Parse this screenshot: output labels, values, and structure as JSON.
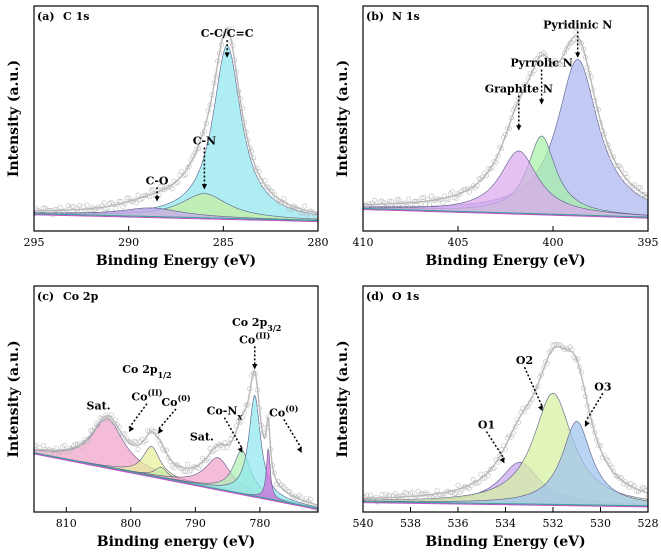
{
  "chart_data": [
    {
      "type": "line",
      "panel_label": "(a)",
      "title": "C 1s",
      "xlabel": "Binding Energy (eV)",
      "ylabel": "Intensity (a.u.)",
      "xlim": [
        295,
        280
      ],
      "xticks": [
        "295",
        "290",
        "285",
        "280"
      ],
      "baseline": {
        "start": 0.1,
        "end": 0.06
      },
      "peaks": [
        {
          "name": "C-C/C=C",
          "center": 284.8,
          "height": 1.0,
          "width": 0.9,
          "fill": "#8fe8ee"
        },
        {
          "name": "C-N",
          "center": 286.0,
          "height": 0.14,
          "width": 1.5,
          "fill": "#c6f0a0"
        },
        {
          "name": "C-O",
          "center": 288.8,
          "height": 0.05,
          "width": 2.0,
          "fill": "#c9a6ee"
        }
      ],
      "annotations": [
        {
          "text": "C-C/C=C",
          "x": 284.8,
          "peak": 1.0,
          "label_y": 1.12
        },
        {
          "text": "C-N",
          "x": 286.0,
          "peak": 0.24,
          "label_y": 0.5
        },
        {
          "text": "C-O",
          "x": 288.5,
          "peak": 0.17,
          "label_y": 0.27
        }
      ]
    },
    {
      "type": "line",
      "panel_label": "(b)",
      "title": "N 1s",
      "xlabel": "Binding Energy (eV)",
      "ylabel": "Intensity (a.u.)",
      "xlim": [
        410,
        395
      ],
      "xticks": [
        "410",
        "405",
        "400",
        "395"
      ],
      "baseline": {
        "start": 0.13,
        "end": 0.08
      },
      "peaks": [
        {
          "name": "Pyridinic N",
          "center": 398.7,
          "height": 0.9,
          "width": 1.3,
          "fill": "#aab5f0"
        },
        {
          "name": "Pyrrolic N",
          "center": 400.6,
          "height": 0.45,
          "width": 0.9,
          "fill": "#a8f0a8"
        },
        {
          "name": "Graphite N",
          "center": 401.8,
          "height": 0.36,
          "width": 1.2,
          "fill": "#dba8ee"
        }
      ],
      "annotations": [
        {
          "text": "Pyridinic N",
          "x": 398.7,
          "peak": 1.0,
          "label_y": 1.17
        },
        {
          "text": "Pyrrolic N",
          "x": 400.6,
          "peak": 0.73,
          "label_y": 0.95
        },
        {
          "text": "Graphite N",
          "x": 401.8,
          "peak": 0.58,
          "label_y": 0.8
        }
      ]
    },
    {
      "type": "line",
      "panel_label": "(c)",
      "title": "Co 2p",
      "xlabel": "Binding energy (eV)",
      "ylabel": "Intensity (a.u.)",
      "xlim": [
        815,
        771
      ],
      "xticks": [
        "810",
        "800",
        "790",
        "780"
      ],
      "baseline": {
        "start": 0.34,
        "end": 0.02
      },
      "peaks": [
        {
          "name": "Sat.",
          "center": 803.6,
          "height": 0.28,
          "width": 3.0,
          "fill": "#f0a2c8"
        },
        {
          "name": "Co(II)",
          "center": 796.8,
          "height": 0.17,
          "width": 1.6,
          "fill": "#e8ef9a"
        },
        {
          "name": "Co(0)",
          "center": 795.3,
          "height": 0.06,
          "width": 1.2,
          "fill": "#c6eea6"
        },
        {
          "name": "Sat.",
          "center": 786.5,
          "height": 0.18,
          "width": 2.4,
          "fill": "#f0a2c8"
        },
        {
          "name": "Co-Nx",
          "center": 782.8,
          "height": 0.25,
          "width": 1.6,
          "fill": "#b2eeb4"
        },
        {
          "name": "Co(II)",
          "center": 780.8,
          "height": 0.58,
          "width": 1.1,
          "fill": "#8fe8ee"
        },
        {
          "name": "Co(0)",
          "center": 778.7,
          "height": 0.3,
          "width": 0.35,
          "fill": "#d06ad8"
        }
      ],
      "annotations": [
        {
          "text": "Co 2p",
          "sub": "3/2",
          "x": 780.5,
          "label_y": 1.07,
          "arrow": false
        },
        {
          "text": "Co",
          "sup": "(II)",
          "x": 780.8,
          "peak": 0.82,
          "label_y": 0.97
        },
        {
          "text": "Co 2p",
          "sub": "1/2",
          "x": 797.5,
          "label_y": 0.8,
          "arrow": false
        },
        {
          "text": "Co",
          "sup": "(II)",
          "x": 797.5,
          "peak": 0.46,
          "label_y": 0.64,
          "lean": -1
        },
        {
          "text": "Co",
          "sup": "(0)",
          "x": 793.0,
          "peak": 0.45,
          "label_y": 0.61,
          "lean": -1
        },
        {
          "text": "Sat.",
          "x": 805.0,
          "label_y": 0.59,
          "arrow": false
        },
        {
          "text": "Co-N",
          "sub": "x",
          "x": 785.5,
          "peak": 0.34,
          "label_y": 0.56,
          "lean": 1
        },
        {
          "text": "Sat.",
          "x": 789.0,
          "label_y": 0.41,
          "arrow": false
        },
        {
          "text": "Co",
          "sup": "(0)",
          "x": 776.3,
          "peak": 0.34,
          "label_y": 0.55,
          "lean": 1
        }
      ]
    },
    {
      "type": "line",
      "panel_label": "(d)",
      "title": "O 1s",
      "xlabel": "Binding Energy (eV)",
      "ylabel": "Intensity (a.u.)",
      "xlim": [
        540,
        528
      ],
      "xticks": [
        "540",
        "538",
        "536",
        "534",
        "532",
        "530",
        "528"
      ],
      "baseline": {
        "start": 0.06,
        "end": 0.035
      },
      "peaks": [
        {
          "name": "O1",
          "center": 533.4,
          "height": 0.24,
          "width": 1.0,
          "fill": "#c9a6ee"
        },
        {
          "name": "O2",
          "center": 532.0,
          "height": 0.64,
          "width": 1.0,
          "fill": "#d6f0a0"
        },
        {
          "name": "O3",
          "center": 531.0,
          "height": 0.48,
          "width": 0.75,
          "fill": "#9ec4ee"
        }
      ],
      "annotations": [
        {
          "text": "O1",
          "x": 534.8,
          "peak": 0.28,
          "label_y": 0.48,
          "lean": 1
        },
        {
          "text": "O2",
          "x": 533.2,
          "peak": 0.58,
          "label_y": 0.85,
          "lean": 1
        },
        {
          "text": "O3",
          "x": 529.9,
          "peak": 0.49,
          "label_y": 0.7,
          "lean": -1
        }
      ]
    }
  ]
}
